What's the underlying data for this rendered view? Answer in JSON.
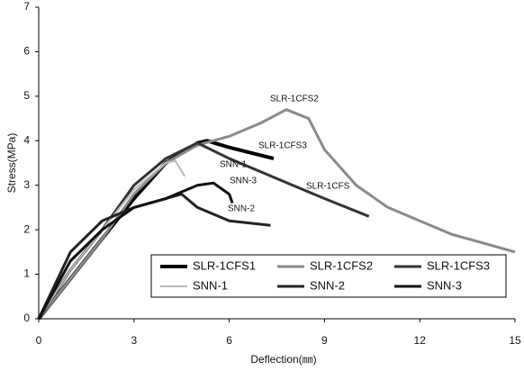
{
  "chart_data": {
    "type": "line",
    "xlabel": "Deflection(㎜)",
    "ylabel": "Stress(MPa)",
    "xlim": [
      0,
      15
    ],
    "ylim": [
      0,
      7
    ],
    "xticks": [
      0,
      3,
      6,
      9,
      12,
      15
    ],
    "yticks": [
      0,
      1,
      2,
      3,
      4,
      5,
      6,
      7
    ],
    "grid": false,
    "legend": "lower right",
    "series": [
      {
        "name": "SLR-1CFS1",
        "color": "#000000",
        "line_width": 4,
        "x": [
          0,
          1,
          2,
          3,
          4,
          5,
          5.3,
          6,
          7.4
        ],
        "values": [
          0,
          0.9,
          1.8,
          2.7,
          3.5,
          3.95,
          4.0,
          3.85,
          3.6
        ]
      },
      {
        "name": "SLR-1CFS2",
        "color": "#8a8a8a",
        "line_width": 3,
        "x": [
          0,
          1,
          2,
          3,
          4,
          5,
          6,
          7,
          7.8,
          8.5,
          9,
          10,
          11,
          12,
          13,
          14,
          15
        ],
        "values": [
          0,
          0.9,
          1.8,
          2.8,
          3.5,
          3.9,
          4.1,
          4.4,
          4.7,
          4.5,
          3.8,
          3.0,
          2.5,
          2.2,
          1.9,
          1.7,
          1.5
        ]
      },
      {
        "name": "SLR-1CFS3",
        "color": "#333333",
        "line_width": 3,
        "x": [
          0,
          1,
          2,
          3,
          4,
          5,
          6,
          7,
          8,
          9,
          10.4
        ],
        "values": [
          0,
          1.1,
          2.0,
          3.0,
          3.6,
          3.95,
          3.6,
          3.3,
          3.0,
          2.7,
          2.3
        ]
      },
      {
        "name": "SNN-1",
        "color": "#bbbbbb",
        "line_width": 2,
        "x": [
          0,
          1,
          2,
          3,
          4,
          4.3,
          4.6
        ],
        "values": [
          0,
          1.1,
          2.0,
          2.9,
          3.5,
          3.55,
          3.2
        ]
      },
      {
        "name": "SNN-2",
        "color": "#222222",
        "line_width": 3,
        "x": [
          0,
          1,
          2,
          3,
          4,
          4.5,
          5,
          6,
          7.3
        ],
        "values": [
          0,
          1.5,
          2.2,
          2.5,
          2.7,
          2.8,
          2.5,
          2.2,
          2.1
        ]
      },
      {
        "name": "SNN-3",
        "color": "#111111",
        "line_width": 3,
        "x": [
          0,
          1,
          2,
          3,
          4,
          5,
          5.5,
          6,
          6.1
        ],
        "values": [
          0,
          1.3,
          2.0,
          2.5,
          2.7,
          3.0,
          3.05,
          2.8,
          2.6
        ]
      }
    ],
    "annotations": [
      "SLR-1CFS2",
      "SLR-1CFS3",
      "SLR-1CFS",
      "SNN-1",
      "SNN-3",
      "SNN-2"
    ]
  }
}
